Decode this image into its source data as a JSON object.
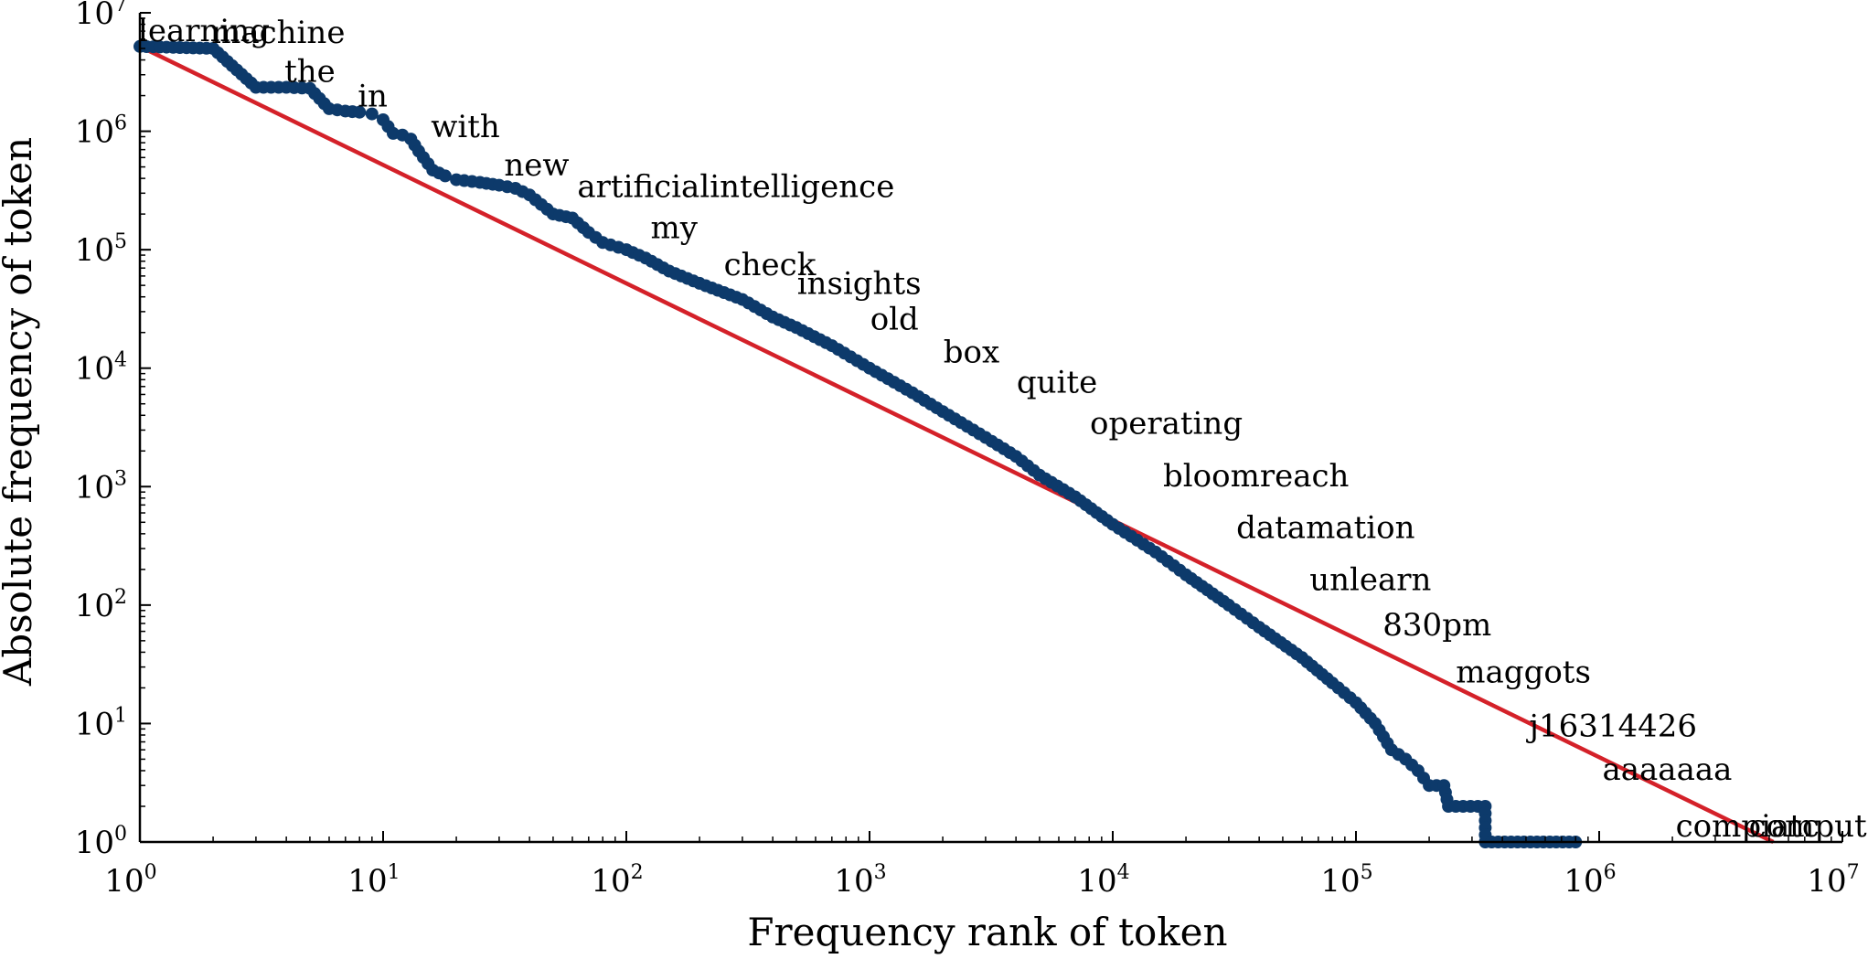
{
  "chart_data": {
    "type": "line",
    "xlabel": "Frequency rank of token",
    "ylabel": "Absolute frequency of token",
    "xscale": "log",
    "yscale": "log",
    "xlim": [
      1,
      10000000
    ],
    "ylim": [
      1,
      10000000
    ],
    "grid": false,
    "x_ticks": [
      {
        "base": "10",
        "exp": "0"
      },
      {
        "base": "10",
        "exp": "1"
      },
      {
        "base": "10",
        "exp": "2"
      },
      {
        "base": "10",
        "exp": "3"
      },
      {
        "base": "10",
        "exp": "4"
      },
      {
        "base": "10",
        "exp": "5"
      },
      {
        "base": "10",
        "exp": "6"
      },
      {
        "base": "10",
        "exp": "7"
      }
    ],
    "y_ticks": [
      {
        "base": "10",
        "exp": "0"
      },
      {
        "base": "10",
        "exp": "1"
      },
      {
        "base": "10",
        "exp": "2"
      },
      {
        "base": "10",
        "exp": "3"
      },
      {
        "base": "10",
        "exp": "4"
      },
      {
        "base": "10",
        "exp": "5"
      },
      {
        "base": "10",
        "exp": "6"
      },
      {
        "base": "10",
        "exp": "7"
      }
    ],
    "colors": {
      "observed": "#0d3a6b",
      "fit": "#d42129"
    },
    "series": [
      {
        "kind": "observed",
        "points": [
          [
            1,
            5200000
          ],
          [
            2,
            5000000
          ],
          [
            3,
            2350000
          ],
          [
            4,
            2350000
          ],
          [
            5,
            2300000
          ],
          [
            6,
            1550000
          ],
          [
            7,
            1480000
          ],
          [
            8,
            1450000
          ],
          [
            9,
            1400000
          ],
          [
            10,
            1250000
          ],
          [
            11,
            960000
          ],
          [
            12,
            930000
          ],
          [
            13,
            860000
          ],
          [
            14,
            680000
          ],
          [
            16,
            470000
          ],
          [
            18,
            420000
          ],
          [
            20,
            390000
          ],
          [
            25,
            370000
          ],
          [
            30,
            350000
          ],
          [
            35,
            330000
          ],
          [
            40,
            290000
          ],
          [
            50,
            200000
          ],
          [
            60,
            185000
          ],
          [
            70,
            140000
          ],
          [
            80,
            115000
          ],
          [
            100,
            100000
          ],
          [
            120,
            85000
          ],
          [
            150,
            66000
          ],
          [
            200,
            52000
          ],
          [
            300,
            38000
          ],
          [
            400,
            27000
          ],
          [
            500,
            22000
          ],
          [
            700,
            15500
          ],
          [
            1000,
            10000
          ],
          [
            1500,
            6200
          ],
          [
            2000,
            4300
          ],
          [
            3000,
            2600
          ],
          [
            4000,
            1800
          ],
          [
            5000,
            1250
          ],
          [
            7000,
            820
          ],
          [
            10000,
            480
          ],
          [
            15000,
            280
          ],
          [
            20000,
            180
          ],
          [
            30000,
            100
          ],
          [
            40000,
            65
          ],
          [
            60000,
            36
          ],
          [
            80000,
            22
          ],
          [
            100000,
            15
          ],
          [
            120000,
            10
          ],
          [
            140000,
            6
          ],
          [
            160000,
            5
          ],
          [
            180000,
            4
          ],
          [
            200000,
            3
          ],
          [
            230000,
            3
          ],
          [
            240000,
            2
          ],
          [
            340000,
            2
          ],
          [
            340000,
            1
          ],
          [
            800000,
            1
          ]
        ]
      },
      {
        "kind": "fit",
        "points": [
          [
            1,
            5200000
          ],
          [
            5200000,
            1
          ]
        ]
      }
    ],
    "annotations": [
      {
        "text": "learning",
        "x": 1,
        "y": 5200000
      },
      {
        "text": "machine",
        "x": 2,
        "y": 5000000
      },
      {
        "text": "the",
        "x": 4,
        "y": 2350000
      },
      {
        "text": "in",
        "x": 8,
        "y": 1450000
      },
      {
        "text": "with",
        "x": 16,
        "y": 800000
      },
      {
        "text": "new",
        "x": 32,
        "y": 380000
      },
      {
        "text": "artificialintelligence",
        "x": 64,
        "y": 250000
      },
      {
        "text": "my",
        "x": 128,
        "y": 113000
      },
      {
        "text": "check",
        "x": 256,
        "y": 55000
      },
      {
        "text": "insights",
        "x": 512,
        "y": 38000
      },
      {
        "text": "old",
        "x": 1024,
        "y": 19000
      },
      {
        "text": "box",
        "x": 2048,
        "y": 10000
      },
      {
        "text": "quite",
        "x": 4096,
        "y": 5600
      },
      {
        "text": "operating",
        "x": 8192,
        "y": 2500
      },
      {
        "text": "bloomreach",
        "x": 16384,
        "y": 900
      },
      {
        "text": "datamation",
        "x": 32768,
        "y": 330
      },
      {
        "text": "unlearn",
        "x": 65536,
        "y": 120
      },
      {
        "text": "830pm",
        "x": 131072,
        "y": 50
      },
      {
        "text": "maggots",
        "x": 262144,
        "y": 20
      },
      {
        "text": "j16314426",
        "x": 524288,
        "y": 7
      },
      {
        "text": "aaaaaaa",
        "x": 1048576,
        "y": 3
      },
      {
        "text": "compiatc",
        "x": 2097152,
        "y": 1
      },
      {
        "text": "computationalmodels",
        "x": 4194304,
        "y": 1
      }
    ]
  }
}
